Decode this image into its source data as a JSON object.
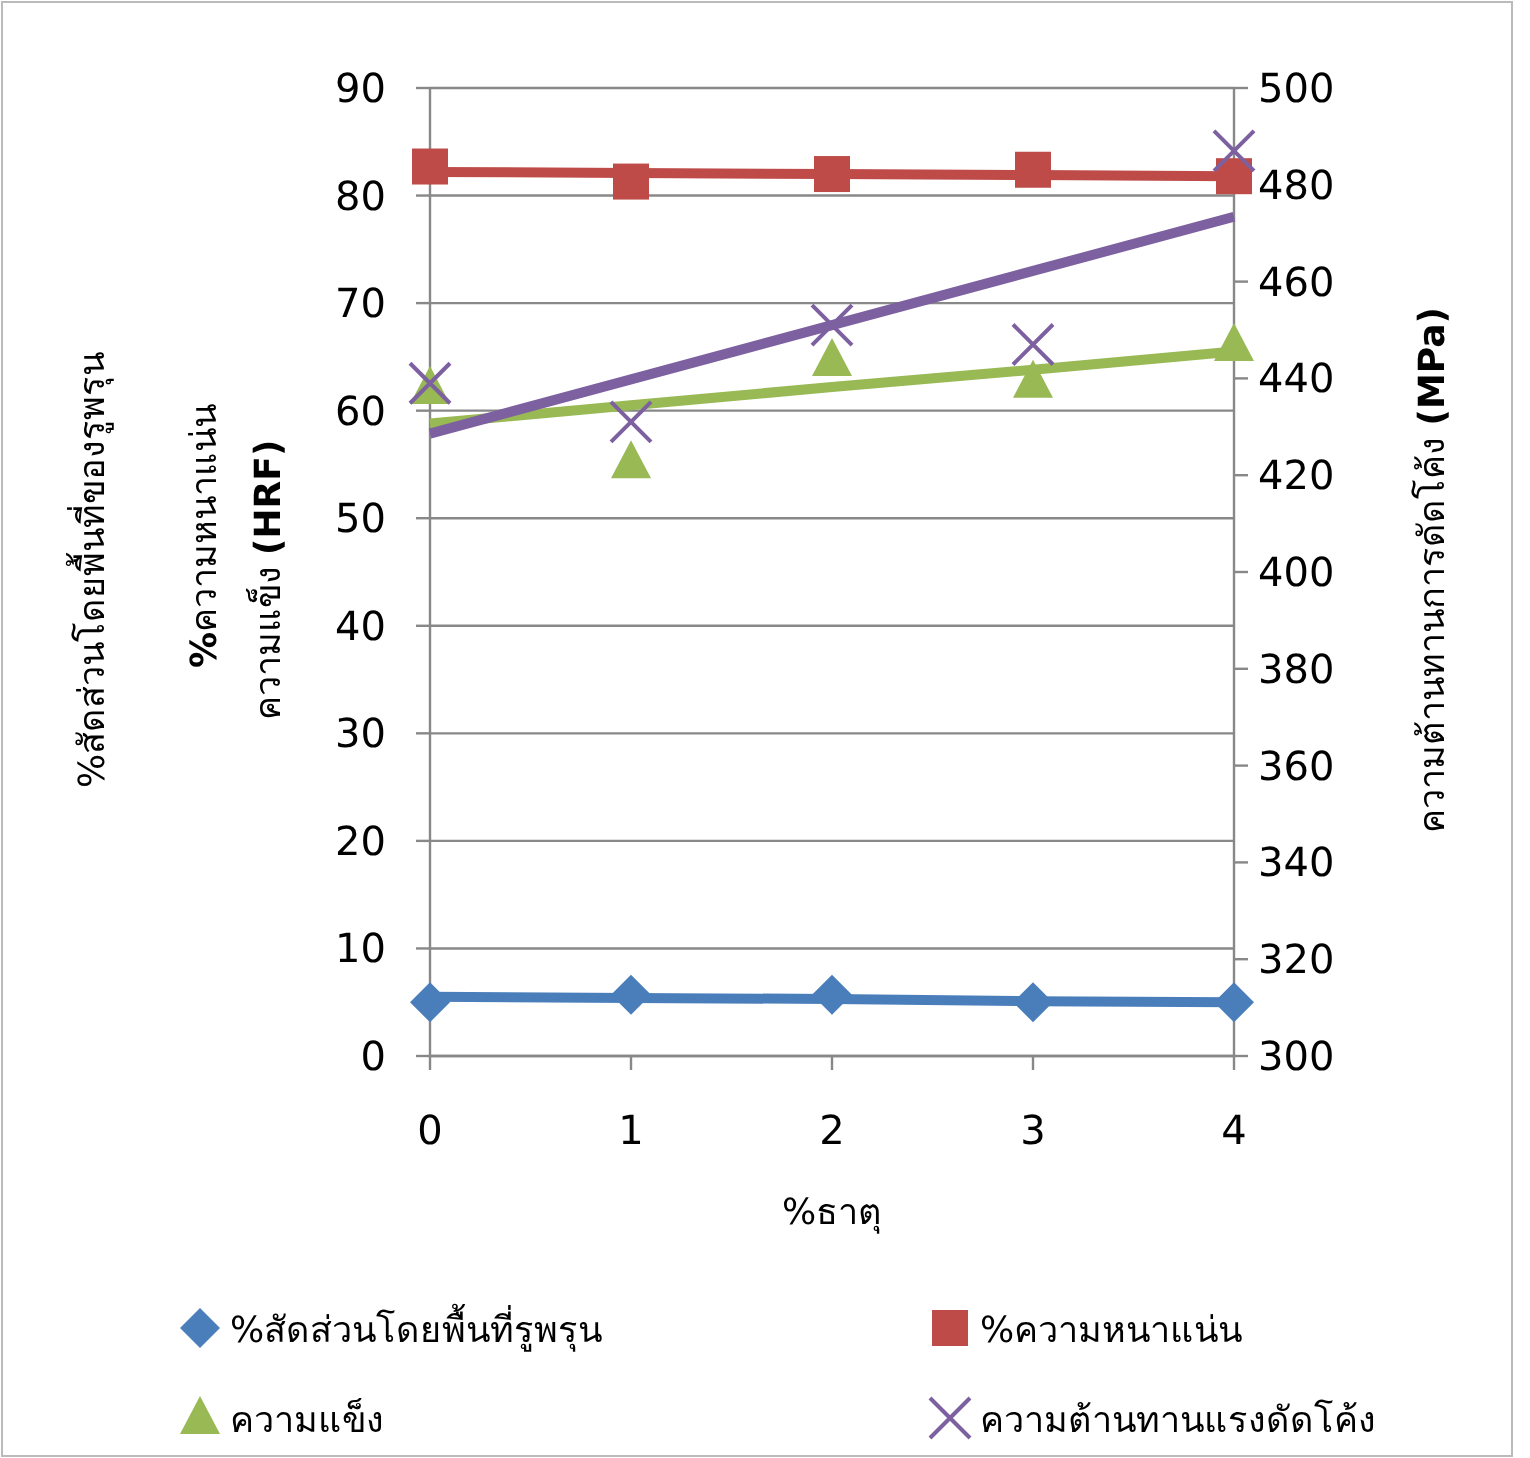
{
  "chart_data": {
    "type": "scatter",
    "xlabel": "%ธาตุ",
    "ylabel": "ความแข็ง **(HRF)**",
    "y2label": "ความต้านทานการดัดโค้ง **(MPa)**",
    "annotations": [
      "%สัดส่วนโดยพื้นที่ของรูพรุน",
      "**%**ความหนาแน่น"
    ],
    "x": [
      0,
      1,
      2,
      3,
      4
    ],
    "xlim": [
      0,
      4
    ],
    "xticks": [
      0,
      1,
      2,
      3,
      4
    ],
    "ylim": [
      0,
      90
    ],
    "yticks": [
      0,
      10,
      20,
      30,
      40,
      50,
      60,
      70,
      80,
      90
    ],
    "y2lim": [
      300,
      500
    ],
    "y2ticks": [
      300,
      320,
      340,
      360,
      380,
      400,
      420,
      440,
      460,
      480,
      500
    ],
    "grid": "y",
    "legend": "bottom",
    "series": [
      {
        "name": "%สัดส่วนโดยพื้นที่รูพรุน",
        "color": "#4a7ebb",
        "marker": "diamond",
        "values": [
          5.0,
          5.7,
          5.7,
          5.0,
          5.0
        ]
      },
      {
        "name": "%ความหนาแน่น",
        "color": "#be4b48",
        "marker": "square",
        "values": [
          82.7,
          81.3,
          82.0,
          82.4,
          81.8
        ]
      },
      {
        "name": "ความแข็ง",
        "color": "#98b954",
        "marker": "triangle",
        "values": [
          62.1,
          55.2,
          64.7,
          62.7,
          66.1
        ]
      },
      {
        "name": "ความต้านทานแรงดัดโค้ง",
        "color": "#7d60a0",
        "marker": "cross",
        "axis": "y2",
        "values": [
          439,
          431,
          451,
          447,
          487
        ]
      },
      {
        "type": "line",
        "color": "#4a7ebb",
        "marker": "none",
        "values": [
          5.5,
          5.4,
          5.3,
          5.1,
          5.0
        ]
      },
      {
        "type": "line",
        "color": "#be4b48",
        "marker": "none",
        "values": [
          82.2,
          82.1,
          82.0,
          81.9,
          81.8
        ]
      },
      {
        "type": "line",
        "color": "#98b954",
        "marker": "none",
        "values": [
          58.8,
          60.5,
          62.2,
          63.8,
          65.5
        ]
      },
      {
        "type": "line",
        "color": "#7d60a0",
        "marker": "none",
        "axis": "y2",
        "values": [
          428.6,
          439.8,
          451.0,
          462.2,
          473.4
        ]
      }
    ]
  }
}
